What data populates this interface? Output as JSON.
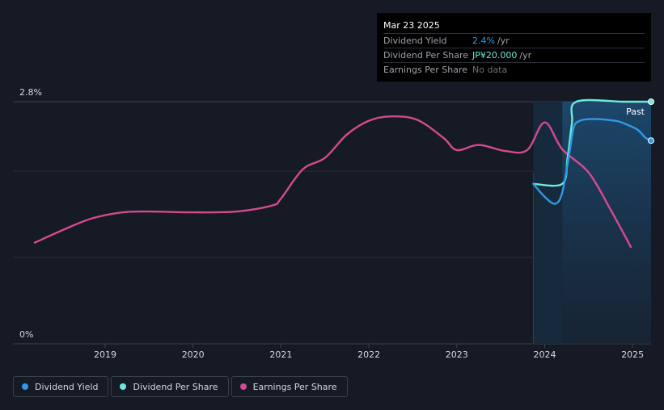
{
  "tooltip": {
    "date": "Mar 23 2025",
    "rows": [
      {
        "label": "Dividend Yield",
        "value": "2.4%",
        "unit": "/yr",
        "color": "#2e9ae6"
      },
      {
        "label": "Dividend Per Share",
        "value": "JP¥20.000",
        "unit": "/yr",
        "color": "#6ee9d9"
      },
      {
        "label": "Earnings Per Share",
        "value": "No data",
        "unit": "",
        "color": "#6b7079"
      }
    ]
  },
  "legend": [
    {
      "label": "Dividend Yield",
      "color": "#2e9ae6"
    },
    {
      "label": "Dividend Per Share",
      "color": "#6ee9d9"
    },
    {
      "label": "Earnings Per Share",
      "color": "#d44a8f"
    }
  ],
  "chart_data": {
    "type": "line",
    "x_ticks": [
      "2019",
      "2020",
      "2021",
      "2022",
      "2023",
      "2024",
      "2025"
    ],
    "y_ticks": [
      "2.8%",
      "0%"
    ],
    "ylim": [
      0,
      2.8
    ],
    "past_label": "Past",
    "series": [
      {
        "name": "Dividend Yield",
        "color": "#2e9ae6",
        "unit": "%",
        "points": [
          [
            2023.87,
            1.85
          ],
          [
            2024.0,
            1.7
          ],
          [
            2024.12,
            1.62
          ],
          [
            2024.2,
            1.75
          ],
          [
            2024.28,
            2.2
          ],
          [
            2024.33,
            2.5
          ],
          [
            2024.4,
            2.58
          ],
          [
            2024.55,
            2.6
          ],
          [
            2024.8,
            2.58
          ],
          [
            2024.9,
            2.55
          ],
          [
            2025.05,
            2.48
          ],
          [
            2025.15,
            2.38
          ],
          [
            2025.22,
            2.35
          ]
        ]
      },
      {
        "name": "Dividend Per Share",
        "color": "#6ee9d9",
        "unit": "JP¥",
        "points": [
          [
            2023.87,
            1.85
          ],
          [
            2024.2,
            1.85
          ],
          [
            2024.26,
            2.15
          ],
          [
            2024.31,
            2.55
          ],
          [
            2024.36,
            2.8
          ],
          [
            2024.9,
            2.8
          ],
          [
            2025.22,
            2.8
          ]
        ]
      },
      {
        "name": "Earnings Per Share",
        "color": "#d44a8f",
        "unit": "",
        "points": [
          [
            2018.2,
            1.17
          ],
          [
            2018.55,
            1.33
          ],
          [
            2018.85,
            1.45
          ],
          [
            2019.2,
            1.52
          ],
          [
            2019.5,
            1.53
          ],
          [
            2020.0,
            1.52
          ],
          [
            2020.5,
            1.53
          ],
          [
            2020.9,
            1.6
          ],
          [
            2021.0,
            1.68
          ],
          [
            2021.25,
            2.02
          ],
          [
            2021.5,
            2.15
          ],
          [
            2021.75,
            2.42
          ],
          [
            2022.0,
            2.58
          ],
          [
            2022.25,
            2.63
          ],
          [
            2022.55,
            2.59
          ],
          [
            2022.85,
            2.38
          ],
          [
            2023.0,
            2.24
          ],
          [
            2023.25,
            2.3
          ],
          [
            2023.55,
            2.23
          ],
          [
            2023.8,
            2.24
          ],
          [
            2024.0,
            2.56
          ],
          [
            2024.2,
            2.25
          ],
          [
            2024.5,
            1.98
          ],
          [
            2024.75,
            1.55
          ],
          [
            2024.98,
            1.12
          ]
        ]
      }
    ],
    "past_region_start": 2023.87,
    "forecast_shade_start": 2024.2,
    "grid": true
  }
}
